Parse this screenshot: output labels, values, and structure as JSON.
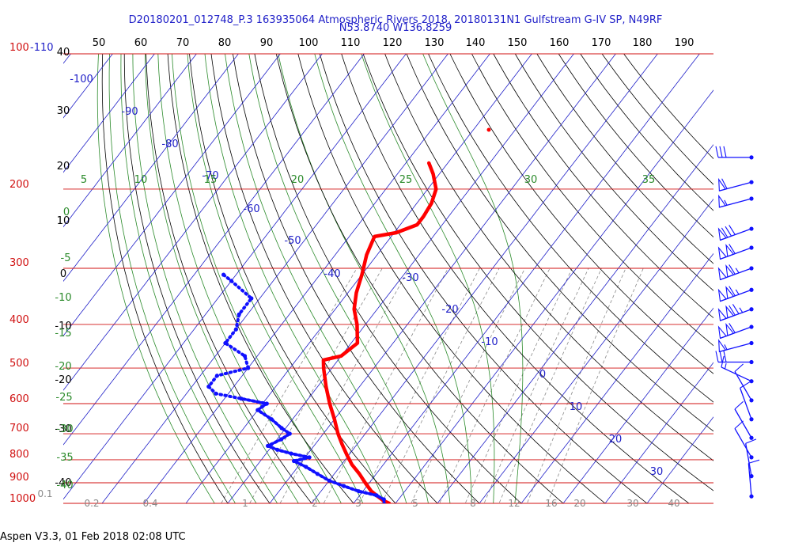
{
  "header": {
    "title_line1": "D20180201_012748_P.3 163935064 Atmospheric Rivers 2018, 20180131N1 Gulfstream G-IV SP, N49RF",
    "title_line2": "N53.8740 W136.8259"
  },
  "footer": {
    "version": "Aspen V3.3, 01 Feb 2018  02:08 UTC"
  },
  "colors": {
    "isobar": "#d01010",
    "isotherm": "#2020c8",
    "dry_adiabat": "#000000",
    "moist_adiabat": "#2a8a2a",
    "mixing_ratio": "#8a8a8a",
    "temperature": "#ff0000",
    "dewpoint": "#1010ff",
    "wind": "#1010ff"
  },
  "chart_data": {
    "type": "skew-t",
    "pressure_levels": [
      100,
      200,
      300,
      400,
      500,
      600,
      700,
      800,
      900,
      1000
    ],
    "top_scale": [
      "50",
      "60",
      "70",
      "80",
      "90",
      "100",
      "110",
      "120",
      "130",
      "140",
      "150",
      "160",
      "170",
      "180",
      "190"
    ],
    "left_scale": [
      "-110",
      "40",
      "30",
      "20",
      "10",
      "0",
      "-10",
      "-20",
      "-30",
      "-40"
    ],
    "isotherm_labels": [
      "-100",
      "-90",
      "-80",
      "-70",
      "-60",
      "-50",
      "-40",
      "-30",
      "-20",
      "-10",
      "0",
      "10",
      "20",
      "30"
    ],
    "theta_e_labels": [
      "5",
      "10",
      "15",
      "20",
      "25",
      "30",
      "35"
    ],
    "theta_e_left_labels": [
      "0",
      "-5",
      "-10",
      "-15",
      "-20",
      "-25",
      "-30",
      "-35",
      "-40"
    ],
    "mixing_ratio_labels": [
      "0.1",
      "0.2",
      "0.4",
      "1",
      "2",
      "3",
      "5",
      "8",
      "12",
      "16",
      "20",
      "30",
      "40"
    ],
    "temperature": [
      {
        "p": 1000,
        "t": -1.5
      },
      {
        "p": 985,
        "t": -3.5
      },
      {
        "p": 965,
        "t": -5.5
      },
      {
        "p": 940,
        "t": -8.0
      },
      {
        "p": 900,
        "t": -11.0
      },
      {
        "p": 860,
        "t": -14.0
      },
      {
        "p": 820,
        "t": -17.5
      },
      {
        "p": 780,
        "t": -20.5
      },
      {
        "p": 740,
        "t": -23.5
      },
      {
        "p": 700,
        "t": -26.5
      },
      {
        "p": 650,
        "t": -30.0
      },
      {
        "p": 600,
        "t": -34.0
      },
      {
        "p": 550,
        "t": -38.0
      },
      {
        "p": 500,
        "t": -42.0
      },
      {
        "p": 480,
        "t": -43.5
      },
      {
        "p": 470,
        "t": -40.0
      },
      {
        "p": 440,
        "t": -38.5
      },
      {
        "p": 400,
        "t": -42.0
      },
      {
        "p": 370,
        "t": -45.5
      },
      {
        "p": 340,
        "t": -48.0
      },
      {
        "p": 310,
        "t": -50.0
      },
      {
        "p": 280,
        "t": -52.5
      },
      {
        "p": 255,
        "t": -54.0
      },
      {
        "p": 250,
        "t": -49.5
      },
      {
        "p": 240,
        "t": -46.0
      },
      {
        "p": 230,
        "t": -46.0
      },
      {
        "p": 215,
        "t": -46.5
      },
      {
        "p": 200,
        "t": -48.0
      },
      {
        "p": 185,
        "t": -51.5
      },
      {
        "p": 175,
        "t": -54.5
      }
    ],
    "dewpoint": [
      {
        "p": 1005,
        "t": -2.5
      },
      {
        "p": 980,
        "t": -3.5
      },
      {
        "p": 960,
        "t": -6.0
      },
      {
        "p": 940,
        "t": -11.0
      },
      {
        "p": 915,
        "t": -15.5
      },
      {
        "p": 890,
        "t": -20.0
      },
      {
        "p": 860,
        "t": -24.0
      },
      {
        "p": 830,
        "t": -28.0
      },
      {
        "p": 805,
        "t": -32.0
      },
      {
        "p": 790,
        "t": -29.0
      },
      {
        "p": 775,
        "t": -34.0
      },
      {
        "p": 760,
        "t": -38.0
      },
      {
        "p": 745,
        "t": -41.0
      },
      {
        "p": 720,
        "t": -39.0
      },
      {
        "p": 700,
        "t": -38.0
      },
      {
        "p": 680,
        "t": -41.0
      },
      {
        "p": 650,
        "t": -45.0
      },
      {
        "p": 620,
        "t": -50.0
      },
      {
        "p": 600,
        "t": -49.0
      },
      {
        "p": 585,
        "t": -56.0
      },
      {
        "p": 570,
        "t": -63.0
      },
      {
        "p": 550,
        "t": -66.0
      },
      {
        "p": 520,
        "t": -66.0
      },
      {
        "p": 500,
        "t": -60.0
      },
      {
        "p": 470,
        "t": -63.0
      },
      {
        "p": 440,
        "t": -70.0
      },
      {
        "p": 410,
        "t": -70.0
      },
      {
        "p": 380,
        "t": -72.0
      },
      {
        "p": 350,
        "t": -72.0
      },
      {
        "p": 320,
        "t": -80.0
      },
      {
        "p": 310,
        "t": -83.0
      }
    ],
    "winds": [
      {
        "p": 170,
        "dir": 270,
        "spd": 30
      },
      {
        "p": 193,
        "dir": 255,
        "spd": 60
      },
      {
        "p": 210,
        "dir": 255,
        "spd": 55
      },
      {
        "p": 245,
        "dir": 250,
        "spd": 80
      },
      {
        "p": 270,
        "dir": 250,
        "spd": 110
      },
      {
        "p": 300,
        "dir": 250,
        "spd": 115
      },
      {
        "p": 335,
        "dir": 250,
        "spd": 115
      },
      {
        "p": 370,
        "dir": 250,
        "spd": 125
      },
      {
        "p": 405,
        "dir": 250,
        "spd": 110
      },
      {
        "p": 440,
        "dir": 255,
        "spd": 55
      },
      {
        "p": 485,
        "dir": 270,
        "spd": 30
      },
      {
        "p": 535,
        "dir": 295,
        "spd": 15
      },
      {
        "p": 590,
        "dir": 330,
        "spd": 10
      },
      {
        "p": 650,
        "dir": 340,
        "spd": 10
      },
      {
        "p": 715,
        "dir": 330,
        "spd": 10
      },
      {
        "p": 790,
        "dir": 330,
        "spd": 10
      },
      {
        "p": 870,
        "dir": 350,
        "spd": 10
      },
      {
        "p": 965,
        "dir": 355,
        "spd": 10
      }
    ]
  }
}
